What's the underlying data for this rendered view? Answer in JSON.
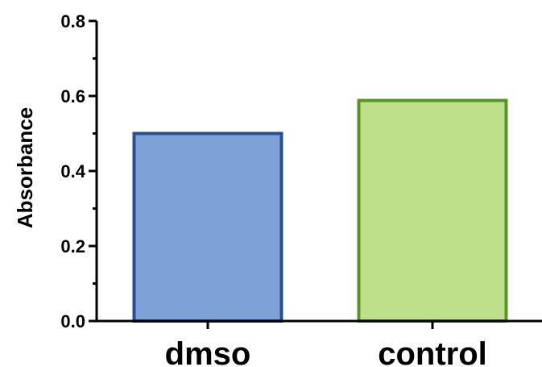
{
  "chart_data": {
    "type": "bar",
    "categories": [
      "dmso",
      "control"
    ],
    "values": [
      0.5,
      0.588
    ],
    "ylabel": "Absorbance",
    "xlabel": "",
    "ylim": [
      0.0,
      0.8
    ],
    "yticks": [
      "0.0",
      "0.2",
      "0.4",
      "0.6",
      "0.8"
    ],
    "ytick_values": [
      0.0,
      0.2,
      0.4,
      0.6,
      0.8
    ],
    "grid": false,
    "legend": "none",
    "bar_fill_colors": [
      "#7ea2d8",
      "#bfe08a"
    ],
    "bar_edge_colors": [
      "#284e94",
      "#5a9425"
    ]
  }
}
